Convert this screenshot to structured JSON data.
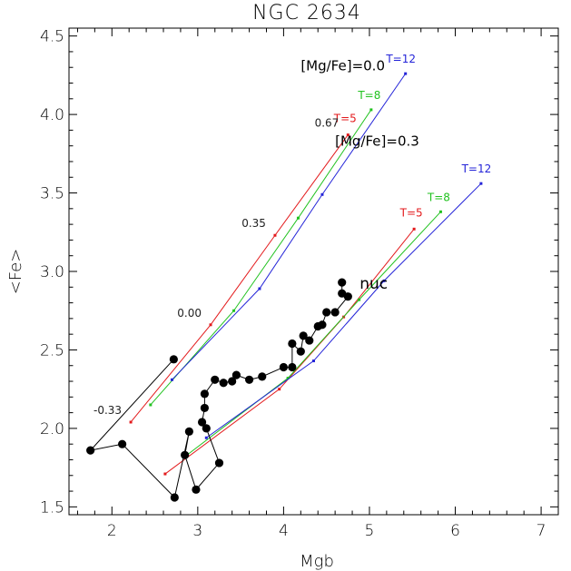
{
  "chart_data": {
    "type": "scatter",
    "title": "NGC 2634",
    "xlabel": "Mgb",
    "ylabel": "<Fe>",
    "xlim": [
      1.5,
      7.2
    ],
    "ylim": [
      1.45,
      4.55
    ],
    "x_ticks": [
      2,
      3,
      4,
      5,
      6,
      7
    ],
    "x_tick_labels": [
      "2",
      "3",
      "4",
      "5",
      "6",
      "7"
    ],
    "y_ticks": [
      1.5,
      2.0,
      2.5,
      3.0,
      3.5,
      4.0,
      4.5
    ],
    "y_tick_labels": [
      "1.5",
      "2.0",
      "2.5",
      "3.0",
      "3.5",
      "4.0",
      "4.5"
    ],
    "x_minor_step": 0.2,
    "y_minor_step": 0.1,
    "grid": false,
    "colors": {
      "T5": "#e31a1c",
      "T8": "#21c21f",
      "T12": "#2424d8",
      "data": "#000000"
    },
    "model_grids": [
      {
        "label": "[Mg/Fe]=0.0",
        "series": [
          {
            "name": "T=5",
            "color": "#e31a1c",
            "points": [
              [
                2.22,
                2.04
              ],
              [
                3.15,
                2.66
              ],
              [
                3.9,
                3.23
              ],
              [
                4.75,
                3.87
              ]
            ]
          },
          {
            "name": "T=8",
            "color": "#21c21f",
            "points": [
              [
                2.45,
                2.15
              ],
              [
                3.42,
                2.75
              ],
              [
                4.17,
                3.34
              ],
              [
                5.02,
                4.03
              ]
            ]
          },
          {
            "name": "T=12",
            "color": "#2424d8",
            "points": [
              [
                2.7,
                2.31
              ],
              [
                3.72,
                2.89
              ],
              [
                4.45,
                3.49
              ],
              [
                5.42,
                4.26
              ]
            ]
          }
        ],
        "metallicity_labels": [
          {
            "text": "-0.33",
            "x": 2.22,
            "y": 2.04
          },
          {
            "text": "0.00",
            "x": 3.15,
            "y": 2.66
          },
          {
            "text": "0.35",
            "x": 3.9,
            "y": 3.23
          },
          {
            "text": "0.67",
            "x": 4.75,
            "y": 3.87
          }
        ]
      },
      {
        "label": "[Mg/Fe]=0.3",
        "series": [
          {
            "name": "T=5",
            "color": "#e31a1c",
            "points": [
              [
                2.62,
                1.71
              ],
              [
                3.95,
                2.25
              ],
              [
                4.7,
                2.71
              ],
              [
                5.52,
                3.27
              ]
            ]
          },
          {
            "name": "T=8",
            "color": "#21c21f",
            "points": [
              [
                2.85,
                1.82
              ],
              [
                4.05,
                2.32
              ],
              [
                4.88,
                2.82
              ],
              [
                5.83,
                3.38
              ]
            ]
          },
          {
            "name": "T=12",
            "color": "#2424d8",
            "points": [
              [
                3.1,
                1.94
              ],
              [
                4.35,
                2.43
              ],
              [
                5.17,
                2.94
              ],
              [
                6.3,
                3.56
              ]
            ]
          }
        ]
      }
    ],
    "data_points": [
      [
        4.68,
        2.93
      ],
      [
        4.68,
        2.86
      ],
      [
        4.75,
        2.84
      ],
      [
        4.6,
        2.74
      ],
      [
        4.5,
        2.74
      ],
      [
        4.45,
        2.66
      ],
      [
        4.4,
        2.65
      ],
      [
        4.3,
        2.56
      ],
      [
        4.23,
        2.59
      ],
      [
        4.2,
        2.49
      ],
      [
        4.1,
        2.54
      ],
      [
        4.1,
        2.39
      ],
      [
        4.0,
        2.39
      ],
      [
        3.75,
        2.33
      ],
      [
        3.6,
        2.31
      ],
      [
        3.45,
        2.34
      ],
      [
        3.4,
        2.3
      ],
      [
        3.3,
        2.29
      ],
      [
        3.2,
        2.31
      ],
      [
        3.08,
        2.22
      ],
      [
        3.08,
        2.13
      ],
      [
        3.05,
        2.04
      ],
      [
        3.1,
        2.0
      ],
      [
        3.25,
        1.78
      ],
      [
        2.98,
        1.61
      ],
      [
        2.85,
        1.83
      ],
      [
        2.9,
        1.98
      ],
      [
        2.73,
        1.56
      ],
      [
        2.12,
        1.9
      ],
      [
        1.75,
        1.86
      ],
      [
        2.72,
        2.44
      ]
    ],
    "annotations": [
      {
        "text": "nuc",
        "x": 4.95,
        "y": 2.93
      }
    ]
  }
}
